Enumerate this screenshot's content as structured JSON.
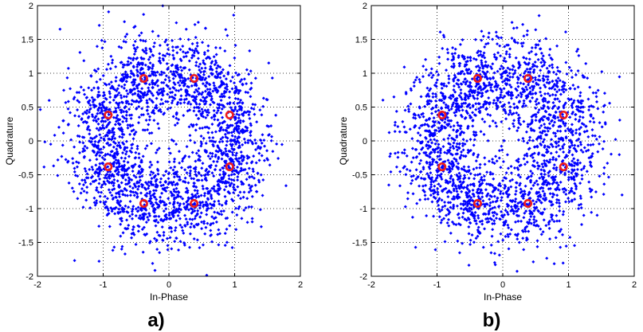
{
  "colors": {
    "points": "#0000ff",
    "reference": "#ee1c1c",
    "axes": "#000000",
    "grid": "#000000",
    "background": "#ffffff"
  },
  "chart_data": [
    {
      "type": "scatter",
      "caption": "a)",
      "xlabel": "In-Phase",
      "ylabel": "Quadrature",
      "xlim": [
        -2,
        2
      ],
      "ylim": [
        -2,
        2
      ],
      "xticks": [
        "-2",
        "-1",
        "0",
        "1",
        "2"
      ],
      "yticks": [
        "2",
        "1.5",
        "1",
        "0.5",
        "0",
        "-0.5",
        "-1",
        "-1.5",
        "-2"
      ],
      "grid": true,
      "series": [
        {
          "role": "received-samples",
          "marker": "dot",
          "count": 2400,
          "distribution": "8-PSK unit circle, gaussian noise sigma 0.33"
        },
        {
          "role": "reference-constellation",
          "marker": "circle",
          "points": [
            [
              0.924,
              0.383
            ],
            [
              0.383,
              0.924
            ],
            [
              -0.383,
              0.924
            ],
            [
              -0.924,
              0.383
            ],
            [
              -0.924,
              -0.383
            ],
            [
              -0.383,
              -0.924
            ],
            [
              0.383,
              -0.924
            ],
            [
              0.924,
              -0.383
            ]
          ]
        }
      ]
    },
    {
      "type": "scatter",
      "caption": "b)",
      "xlabel": "In-Phase",
      "ylabel": "Quadrature",
      "xlim": [
        -2,
        2
      ],
      "ylim": [
        -2,
        2
      ],
      "xticks": [
        "-2",
        "-1",
        "0",
        "1",
        "2"
      ],
      "yticks": [
        "2",
        "1.5",
        "1",
        "0.5",
        "0",
        "-0.5",
        "-1",
        "-1.5",
        "-2"
      ],
      "grid": true,
      "series": [
        {
          "role": "received-samples",
          "marker": "dot",
          "count": 2300,
          "distribution": "8-PSK unit circle, gaussian noise sigma 0.34"
        },
        {
          "role": "reference-constellation",
          "marker": "circle",
          "points": [
            [
              0.924,
              0.383
            ],
            [
              0.383,
              0.924
            ],
            [
              -0.383,
              0.924
            ],
            [
              -0.924,
              0.383
            ],
            [
              -0.924,
              -0.383
            ],
            [
              -0.383,
              -0.924
            ],
            [
              0.383,
              -0.924
            ],
            [
              0.924,
              -0.383
            ]
          ]
        }
      ]
    }
  ]
}
